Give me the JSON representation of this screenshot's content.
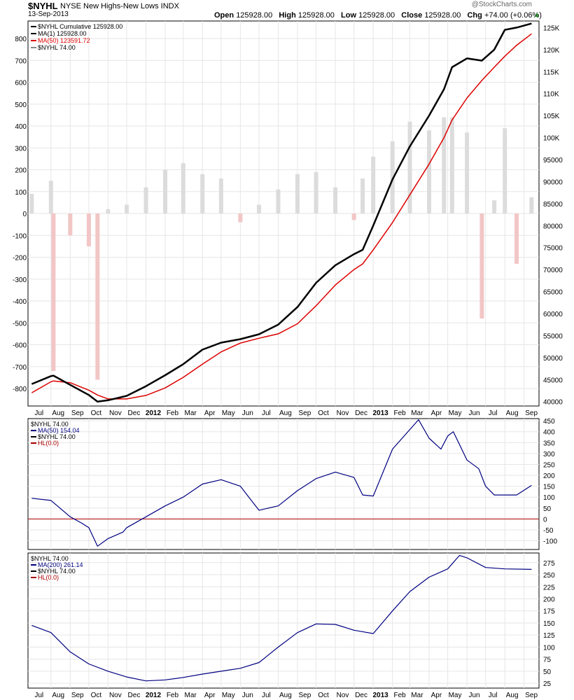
{
  "header": {
    "symbol": "$NYHL",
    "name": "NYSE New Highs-New Lows",
    "exchange": "INDX",
    "date": "13-Sep-2013",
    "open_label": "Open",
    "open": "125928.00",
    "high_label": "High",
    "high": "125928.00",
    "low_label": "Low",
    "low": "125928.00",
    "close_label": "Close",
    "close": "125928.00",
    "chg_label": "Chg",
    "chg": "+74.00 (+0.06%)",
    "watermark": "@StockCharts.com"
  },
  "colors": {
    "cumulative": "#000000",
    "ma": "#dd0000",
    "histogram_pos": "#dcdcdc",
    "histogram_neg": "#f2c6c6",
    "ma_line": "#000080",
    "zero_line": "#aa0000",
    "grid": "#e6e6e6"
  },
  "x_axis": {
    "months": [
      "Jul",
      "Aug",
      "Sep",
      "Oct",
      "Nov",
      "Dec",
      "2012",
      "Feb",
      "Mar",
      "Apr",
      "May",
      "Jun",
      "Jul",
      "Aug",
      "Sep",
      "Oct",
      "Nov",
      "Dec",
      "2013",
      "Feb",
      "Mar",
      "Apr",
      "May",
      "Jun",
      "Jul",
      "Aug",
      "Sep"
    ],
    "bold": [
      "2012",
      "2013"
    ]
  },
  "chart_data": [
    {
      "type": "line",
      "panel": "main",
      "legend": [
        {
          "text": "$NYHL  Cumulative  125928.00",
          "color": "#000000"
        },
        {
          "text": "MA(1) 125928.00",
          "color": "#000000"
        },
        {
          "text": "MA(50) 123591.72",
          "color": "#dd0000"
        },
        {
          "text": "$NYHL  74.00",
          "color": "#888888"
        }
      ],
      "left_axis": {
        "ticks": [
          800,
          700,
          600,
          500,
          400,
          300,
          200,
          100,
          0,
          -100,
          -200,
          -300,
          -400,
          -500,
          -600,
          -700,
          -800
        ],
        "range": [
          -880,
          880
        ]
      },
      "right_axis": {
        "ticks": [
          "125K",
          "120K",
          "115K",
          "110K",
          "105K",
          "100K",
          "95000",
          "90000",
          "85000",
          "80000",
          "75000",
          "70000",
          "65000",
          "60000",
          "55000",
          "50000",
          "45000",
          "40000"
        ],
        "range": [
          39000,
          126500
        ]
      },
      "x": [
        "2011-07-01",
        "2011-08-01",
        "2011-08-05",
        "2011-09-01",
        "2011-10-01",
        "2011-10-15",
        "2011-11-01",
        "2011-12-01",
        "2012-01-01",
        "2012-02-01",
        "2012-03-01",
        "2012-04-01",
        "2012-05-01",
        "2012-06-01",
        "2012-07-01",
        "2012-08-01",
        "2012-09-01",
        "2012-10-01",
        "2012-11-01",
        "2012-12-01",
        "2012-12-15",
        "2013-01-01",
        "2013-02-01",
        "2013-03-01",
        "2013-04-01",
        "2013-04-25",
        "2013-05-08",
        "2013-06-01",
        "2013-06-25",
        "2013-07-15",
        "2013-08-01",
        "2013-08-20",
        "2013-09-13"
      ],
      "series": [
        {
          "name": "$NYHL Cumulative",
          "values": [
            44000,
            45800,
            45900,
            43800,
            41500,
            40000,
            40300,
            41300,
            43500,
            46000,
            48500,
            51800,
            53400,
            54200,
            55300,
            57500,
            61500,
            67000,
            71000,
            73500,
            74500,
            80000,
            90500,
            98000,
            105000,
            111000,
            116000,
            118000,
            117500,
            120000,
            124500,
            125000,
            125928
          ]
        },
        {
          "name": "MA(50)",
          "values": [
            42000,
            44500,
            44700,
            44300,
            42600,
            41500,
            40600,
            40600,
            41400,
            43100,
            45500,
            48500,
            51300,
            53300,
            54400,
            55400,
            57700,
            61800,
            66500,
            70000,
            71300,
            74500,
            80700,
            87000,
            94000,
            100000,
            104000,
            109000,
            113000,
            116000,
            118500,
            121000,
            123591
          ]
        },
        {
          "name": "$NYHL daily",
          "values": [
            90,
            150,
            -720,
            -100,
            -150,
            -760,
            20,
            40,
            120,
            200,
            230,
            180,
            160,
            -40,
            40,
            110,
            180,
            190,
            120,
            -30,
            160,
            260,
            330,
            420,
            380,
            440,
            440,
            370,
            -480,
            60,
            390,
            -230,
            74
          ]
        }
      ]
    },
    {
      "type": "line",
      "panel": "middle",
      "legend": [
        {
          "text": "$NYHL  74.00",
          "color": "#000000"
        },
        {
          "text": "MA(50) 154.04",
          "color": "#000080"
        },
        {
          "text": "$NYHL  74.00",
          "color": "#000000"
        },
        {
          "text": "HL(0.0)",
          "color": "#aa0000"
        }
      ],
      "y_ticks": [
        450,
        400,
        350,
        300,
        250,
        200,
        150,
        100,
        50,
        0,
        -50,
        -100
      ],
      "ylim": [
        -140,
        460
      ],
      "zero_line": 0,
      "x": [
        "2011-07-01",
        "2011-08-01",
        "2011-09-01",
        "2011-09-20",
        "2011-10-01",
        "2011-10-15",
        "2011-11-01",
        "2011-11-25",
        "2011-12-01",
        "2012-01-01",
        "2012-02-01",
        "2012-03-01",
        "2012-04-01",
        "2012-05-01",
        "2012-06-01",
        "2012-06-20",
        "2012-07-01",
        "2012-08-01",
        "2012-09-01",
        "2012-10-01",
        "2012-11-01",
        "2012-12-01",
        "2012-12-15",
        "2013-01-01",
        "2013-02-01",
        "2013-03-01",
        "2013-03-15",
        "2013-04-01",
        "2013-04-20",
        "2013-05-01",
        "2013-05-10",
        "2013-06-01",
        "2013-06-20",
        "2013-07-01",
        "2013-07-15",
        "2013-08-01",
        "2013-08-20",
        "2013-09-13"
      ],
      "values": [
        95,
        85,
        10,
        -20,
        -40,
        -125,
        -90,
        -60,
        -40,
        10,
        60,
        100,
        160,
        180,
        150,
        80,
        40,
        60,
        130,
        185,
        215,
        190,
        110,
        105,
        320,
        410,
        455,
        370,
        320,
        380,
        400,
        270,
        230,
        150,
        110,
        110,
        110,
        154
      ]
    },
    {
      "type": "line",
      "panel": "bottom",
      "legend": [
        {
          "text": "$NYHL  74.00",
          "color": "#000000"
        },
        {
          "text": "MA(200) 261.14",
          "color": "#000080"
        },
        {
          "text": "$NYHL  74.00",
          "color": "#000000"
        },
        {
          "text": "HL(0.0)",
          "color": "#aa0000"
        }
      ],
      "y_ticks": [
        275,
        250,
        225,
        200,
        175,
        150,
        125,
        100,
        75,
        50,
        25
      ],
      "ylim": [
        15,
        295
      ],
      "x": [
        "2011-07-01",
        "2011-08-01",
        "2011-09-01",
        "2011-10-01",
        "2011-11-01",
        "2011-12-01",
        "2012-01-01",
        "2012-02-01",
        "2012-03-01",
        "2012-04-01",
        "2012-05-01",
        "2012-06-01",
        "2012-07-01",
        "2012-08-01",
        "2012-09-01",
        "2012-10-01",
        "2012-11-01",
        "2012-12-01",
        "2013-01-01",
        "2013-02-01",
        "2013-03-01",
        "2013-04-01",
        "2013-05-01",
        "2013-05-20",
        "2013-06-01",
        "2013-07-01",
        "2013-08-01",
        "2013-09-13"
      ],
      "values": [
        145,
        130,
        90,
        65,
        50,
        38,
        30,
        32,
        37,
        44,
        50,
        56,
        68,
        100,
        130,
        148,
        147,
        135,
        128,
        175,
        215,
        245,
        262,
        290,
        285,
        265,
        262,
        261
      ]
    }
  ]
}
